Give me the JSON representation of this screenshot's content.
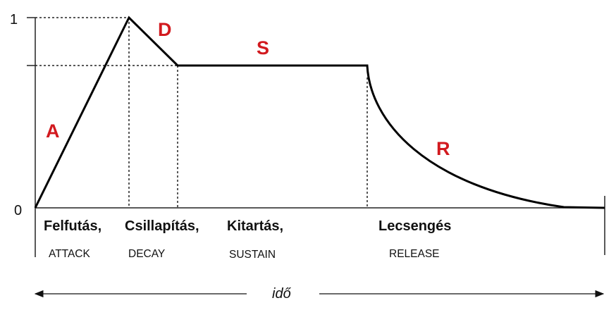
{
  "axis": {
    "y_top_label": "1",
    "y_bottom_label": "0",
    "time_label": "idő"
  },
  "phase_letters": {
    "attack": "A",
    "decay": "D",
    "sustain": "S",
    "release": "R"
  },
  "hungarian_labels": {
    "attack": "Felfutás,",
    "decay": "Csillapítás,",
    "sustain": "Kitartás,",
    "release": "Lecsengés"
  },
  "english_labels": {
    "attack": "ATTACK",
    "decay": "DECAY",
    "sustain": "SUSTAIN",
    "release": "RELEASE"
  },
  "envelope": {
    "peak_level": 1,
    "sustain_level": 0.8
  },
  "colors": {
    "letters": "#d21a1f",
    "lines": "#000000"
  }
}
